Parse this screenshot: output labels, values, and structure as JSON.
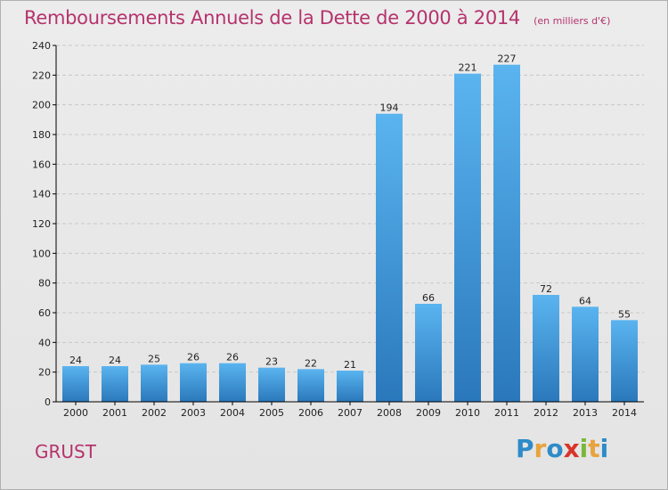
{
  "header": {
    "title": "Remboursements Annuels de la Dette de 2000 à 2014",
    "unit": "(en milliers d'€)"
  },
  "footer": {
    "location": "GRUST",
    "logo": "Proxiti",
    "logo_letters": [
      "P",
      "r",
      "o",
      "x",
      "i",
      "t",
      "i"
    ],
    "logo_colors": [
      "#2e8bc9",
      "#e8a33d",
      "#2e8bc9",
      "#d8352a",
      "#7bb83a",
      "#e8a33d",
      "#2e8bc9"
    ]
  },
  "colors": {
    "title": "#b5336d",
    "bar_top": "#5ab4ef",
    "bar_bottom": "#2a78bb",
    "axis": "#000000",
    "grid": "#c8c8c8"
  },
  "chart_data": {
    "type": "bar",
    "title": "Remboursements Annuels de la Dette de 2000 à 2014",
    "unit": "(en milliers d'€)",
    "categories": [
      "2000",
      "2001",
      "2002",
      "2003",
      "2004",
      "2005",
      "2006",
      "2007",
      "2008",
      "2009",
      "2010",
      "2011",
      "2012",
      "2013",
      "2014"
    ],
    "values": [
      24,
      24,
      25,
      26,
      26,
      23,
      22,
      21,
      194,
      66,
      221,
      227,
      72,
      64,
      55
    ],
    "ylim": [
      0,
      240
    ],
    "yticks": [
      0,
      20,
      40,
      60,
      80,
      100,
      120,
      140,
      160,
      180,
      200,
      220,
      240
    ],
    "grid": true,
    "data_labels": true
  }
}
